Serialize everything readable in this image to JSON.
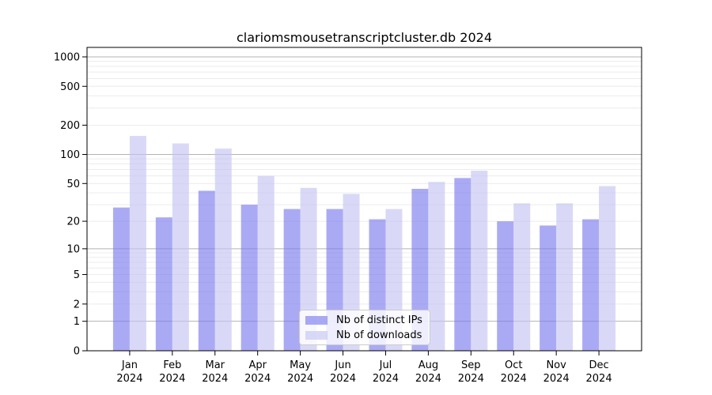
{
  "page": {
    "background": "#ffffff"
  },
  "chart_data": {
    "type": "bar",
    "title": "clariomsmousetranscriptcluster.db 2024",
    "categories": [
      "Jan",
      "Feb",
      "Mar",
      "Apr",
      "May",
      "Jun",
      "Jul",
      "Aug",
      "Sep",
      "Oct",
      "Nov",
      "Dec"
    ],
    "x_year_label": "2024",
    "series": [
      {
        "name": "Nb of distinct IPs",
        "color": "#7c7cee",
        "values": [
          28,
          22,
          42,
          30,
          27,
          27,
          21,
          44,
          57,
          20,
          18,
          21
        ]
      },
      {
        "name": "Nb of downloads",
        "color": "#c4c4f3",
        "values": [
          155,
          130,
          115,
          60,
          45,
          39,
          27,
          52,
          68,
          31,
          31,
          47
        ]
      }
    ],
    "bar_alpha": 0.65,
    "yscale": "log10(1+v)",
    "ylim": [
      0,
      1250
    ],
    "yticks": [
      0,
      1,
      2,
      5,
      10,
      20,
      50,
      100,
      200,
      500,
      1000
    ],
    "major_gridline_values": [
      1,
      10,
      100,
      1000
    ],
    "grid": true,
    "legend_position": "inside-bottom-center",
    "colors": {
      "major_grid": "#b3b3b3",
      "minor_grid": "#ececec",
      "frame": "#000000",
      "tick_text": "#000000"
    }
  }
}
